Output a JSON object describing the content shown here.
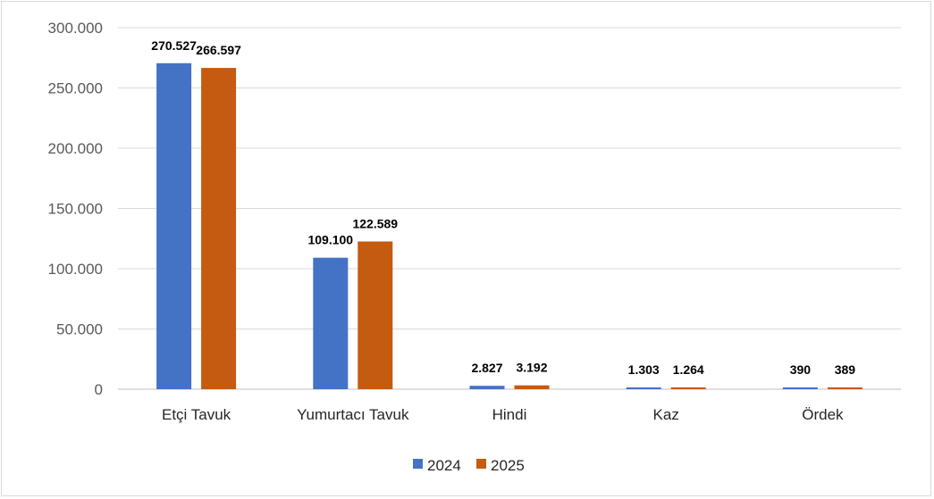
{
  "chart_data": {
    "type": "bar",
    "title": "",
    "xlabel": "",
    "ylabel": "",
    "ylim": [
      0,
      300000
    ],
    "yticks": [
      0,
      50000,
      100000,
      150000,
      200000,
      250000,
      300000
    ],
    "ytick_labels": [
      "0",
      "50.000",
      "100.000",
      "150.000",
      "200.000",
      "250.000",
      "300.000"
    ],
    "grid": true,
    "legend_position": "bottom",
    "categories": [
      "Etçi Tavuk",
      "Yumurtacı Tavuk",
      "Hindi",
      "Kaz",
      "Ördek"
    ],
    "series": [
      {
        "name": "2024",
        "color": "#4472C4",
        "values": [
          270527,
          109100,
          2827,
          1303,
          390
        ],
        "labels": [
          "270.527",
          "109.100",
          "2.827",
          "1.303",
          "390"
        ]
      },
      {
        "name": "2025",
        "color": "#C55A11",
        "values": [
          266597,
          122589,
          3192,
          1264,
          389
        ],
        "labels": [
          "266.597",
          "122.589",
          "3.192",
          "1.264",
          "389"
        ]
      }
    ]
  }
}
